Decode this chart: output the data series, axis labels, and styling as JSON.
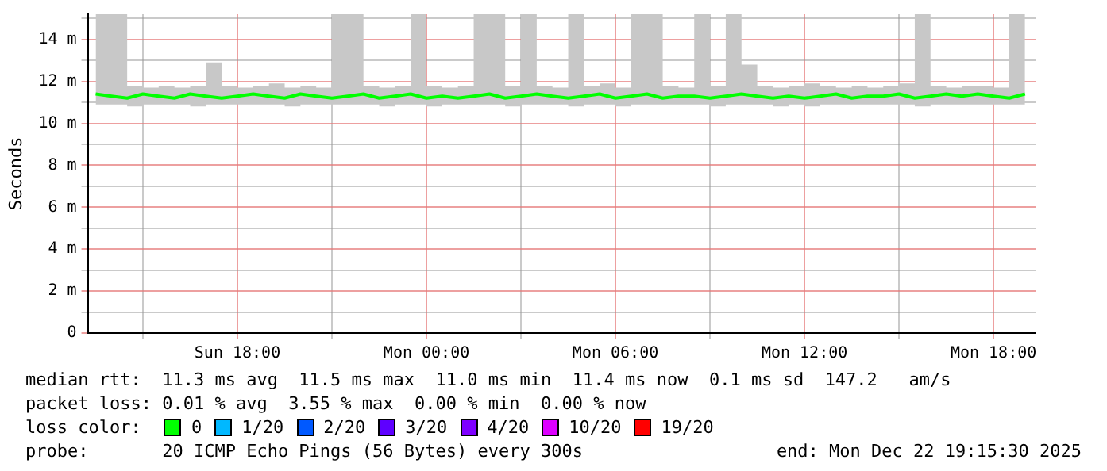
{
  "chart_data": {
    "type": "line",
    "ylabel": "Seconds",
    "legend_title": "loss color:",
    "legend": "bottom",
    "grid": true,
    "marker": "none",
    "line_style": "solid",
    "xlim": [
      "2025-12-21T13:15",
      "2025-12-22T19:20"
    ],
    "xticks": [
      {
        "value": "2025-12-21T15:00",
        "label": null
      },
      {
        "value": "2025-12-21T18:00",
        "label": "Sun 18:00"
      },
      {
        "value": "2025-12-21T21:00",
        "label": null
      },
      {
        "value": "2025-12-22T00:00",
        "label": "Mon 00:00"
      },
      {
        "value": "2025-12-22T03:00",
        "label": null
      },
      {
        "value": "2025-12-22T06:00",
        "label": "Mon 06:00"
      },
      {
        "value": "2025-12-22T09:00",
        "label": null
      },
      {
        "value": "2025-12-22T12:00",
        "label": "Mon 12:00"
      },
      {
        "value": "2025-12-22T15:00",
        "label": null
      },
      {
        "value": "2025-12-22T18:00",
        "label": "Mon 18:00"
      }
    ],
    "ylim": [
      0,
      15.2
    ],
    "yticks": [
      0,
      {
        "value": 1,
        "label": null
      },
      {
        "value": 2,
        "label": "2 m"
      },
      {
        "value": 3,
        "label": null
      },
      {
        "value": 4,
        "label": "4 m"
      },
      {
        "value": 5,
        "label": null
      },
      {
        "value": 6,
        "label": "6 m"
      },
      {
        "value": 7,
        "label": null
      },
      {
        "value": 8,
        "label": "8 m"
      },
      {
        "value": 9,
        "label": null
      },
      {
        "value": 10,
        "label": "10 m"
      },
      {
        "value": 11,
        "label": null
      },
      {
        "value": 12,
        "label": "12 m"
      },
      {
        "value": 13,
        "label": null
      },
      {
        "value": 14,
        "label": "14 m"
      },
      {
        "value": 15,
        "label": null
      }
    ],
    "x": [
      "2025-12-21T13:30",
      "2025-12-21T14:00",
      "2025-12-21T14:30",
      "2025-12-21T15:00",
      "2025-12-21T15:30",
      "2025-12-21T16:00",
      "2025-12-21T16:30",
      "2025-12-21T17:00",
      "2025-12-21T17:30",
      "2025-12-21T18:00",
      "2025-12-21T18:30",
      "2025-12-21T19:00",
      "2025-12-21T19:30",
      "2025-12-21T20:00",
      "2025-12-21T20:30",
      "2025-12-21T21:00",
      "2025-12-21T21:30",
      "2025-12-21T22:00",
      "2025-12-21T22:30",
      "2025-12-21T23:00",
      "2025-12-21T23:30",
      "2025-12-22T00:00",
      "2025-12-22T00:30",
      "2025-12-22T01:00",
      "2025-12-22T01:30",
      "2025-12-22T02:00",
      "2025-12-22T02:30",
      "2025-12-22T03:00",
      "2025-12-22T03:30",
      "2025-12-22T04:00",
      "2025-12-22T04:30",
      "2025-12-22T05:00",
      "2025-12-22T05:30",
      "2025-12-22T06:00",
      "2025-12-22T06:30",
      "2025-12-22T07:00",
      "2025-12-22T07:30",
      "2025-12-22T08:00",
      "2025-12-22T08:30",
      "2025-12-22T09:00",
      "2025-12-22T09:30",
      "2025-12-22T10:00",
      "2025-12-22T10:30",
      "2025-12-22T11:00",
      "2025-12-22T11:30",
      "2025-12-22T12:00",
      "2025-12-22T12:30",
      "2025-12-22T13:00",
      "2025-12-22T13:30",
      "2025-12-22T14:00",
      "2025-12-22T14:30",
      "2025-12-22T15:00",
      "2025-12-22T15:30",
      "2025-12-22T16:00",
      "2025-12-22T16:30",
      "2025-12-22T17:00",
      "2025-12-22T17:30",
      "2025-12-22T18:00",
      "2025-12-22T18:30",
      "2025-12-22T19:00"
    ],
    "series": [
      {
        "name": "0",
        "color": "#00ff00",
        "values": [
          11.4,
          11.3,
          11.2,
          11.4,
          11.3,
          11.2,
          11.4,
          11.3,
          11.2,
          11.3,
          11.4,
          11.3,
          11.2,
          11.4,
          11.3,
          11.2,
          11.3,
          11.4,
          11.2,
          11.3,
          11.4,
          11.2,
          11.3,
          11.2,
          11.3,
          11.4,
          11.2,
          11.3,
          11.4,
          11.3,
          11.2,
          11.3,
          11.4,
          11.2,
          11.3,
          11.4,
          11.2,
          11.3,
          11.3,
          11.2,
          11.3,
          11.4,
          11.3,
          11.2,
          11.3,
          11.2,
          11.3,
          11.4,
          11.2,
          11.3,
          11.3,
          11.4,
          11.2,
          11.3,
          11.4,
          11.3,
          11.4,
          11.3,
          11.2,
          11.4
        ],
        "lower": [
          10.9,
          10.9,
          10.8,
          10.9,
          10.9,
          10.9,
          10.8,
          10.9,
          10.9,
          10.9,
          10.9,
          10.9,
          10.8,
          10.9,
          10.9,
          10.9,
          10.9,
          10.9,
          10.8,
          10.9,
          10.9,
          10.8,
          10.9,
          10.9,
          10.9,
          10.9,
          10.8,
          10.9,
          10.9,
          10.9,
          10.8,
          10.9,
          10.9,
          10.8,
          10.9,
          10.9,
          10.9,
          10.9,
          10.9,
          10.8,
          10.9,
          10.9,
          10.9,
          10.8,
          10.9,
          10.8,
          10.9,
          10.9,
          10.9,
          10.9,
          10.9,
          10.9,
          10.8,
          10.9,
          10.9,
          10.9,
          10.9,
          10.9,
          10.9,
          10.9
        ],
        "upper": [
          15.2,
          15.2,
          11.8,
          11.7,
          11.8,
          11.7,
          11.8,
          12.9,
          11.8,
          11.7,
          11.8,
          11.9,
          11.7,
          11.8,
          11.7,
          15.2,
          15.2,
          11.8,
          11.7,
          11.8,
          15.2,
          11.8,
          11.7,
          11.8,
          15.2,
          15.2,
          11.8,
          15.2,
          11.8,
          11.7,
          15.2,
          11.8,
          11.9,
          11.7,
          15.2,
          15.2,
          11.8,
          11.7,
          15.2,
          11.8,
          15.2,
          12.8,
          11.8,
          11.7,
          11.8,
          11.9,
          11.8,
          11.7,
          11.8,
          11.7,
          11.8,
          11.9,
          15.2,
          11.8,
          11.7,
          11.8,
          11.8,
          11.7,
          15.2,
          11.9
        ]
      },
      {
        "name": "1/20",
        "color": "#00b8ff",
        "values": [
          null,
          null,
          null,
          null,
          null,
          null,
          null,
          null,
          null,
          null,
          null,
          null,
          null,
          null,
          null,
          null,
          null,
          null,
          null,
          null,
          null,
          null,
          null,
          null,
          null,
          null,
          null,
          null,
          null,
          null,
          null,
          null,
          null,
          null,
          null,
          null,
          null,
          null,
          null,
          null,
          null,
          null,
          null,
          null,
          null,
          null,
          null,
          null,
          null,
          null,
          null,
          null,
          null,
          null,
          null,
          null,
          null,
          null,
          null,
          null
        ]
      },
      {
        "name": "2/20",
        "color": "#0059ff",
        "values": [
          null,
          null,
          null,
          null,
          null,
          null,
          null,
          null,
          null,
          null,
          null,
          null,
          null,
          null,
          null,
          null,
          null,
          null,
          null,
          null,
          null,
          null,
          null,
          null,
          null,
          null,
          null,
          null,
          null,
          null,
          null,
          null,
          null,
          null,
          null,
          null,
          null,
          null,
          null,
          null,
          null,
          null,
          null,
          null,
          null,
          null,
          null,
          null,
          null,
          null,
          null,
          null,
          null,
          null,
          null,
          null,
          null,
          null,
          null,
          null
        ]
      },
      {
        "name": "3/20",
        "color": "#5e00ff",
        "values": [
          null,
          null,
          null,
          null,
          null,
          null,
          null,
          null,
          null,
          null,
          null,
          null,
          null,
          null,
          null,
          null,
          null,
          null,
          null,
          null,
          null,
          null,
          null,
          null,
          null,
          null,
          null,
          null,
          null,
          null,
          null,
          null,
          null,
          null,
          null,
          null,
          null,
          null,
          null,
          null,
          null,
          null,
          null,
          null,
          null,
          null,
          null,
          null,
          null,
          null,
          null,
          null,
          null,
          null,
          null,
          null,
          null,
          null,
          null,
          null
        ]
      },
      {
        "name": "4/20",
        "color": "#7e00ff",
        "values": [
          null,
          null,
          null,
          null,
          null,
          null,
          null,
          null,
          null,
          null,
          null,
          null,
          null,
          null,
          null,
          null,
          null,
          null,
          null,
          null,
          null,
          null,
          null,
          null,
          null,
          null,
          null,
          null,
          null,
          null,
          null,
          null,
          null,
          null,
          null,
          null,
          null,
          null,
          null,
          null,
          null,
          null,
          null,
          null,
          null,
          null,
          null,
          null,
          null,
          null,
          null,
          null,
          null,
          null,
          null,
          null,
          null,
          null,
          null,
          null
        ]
      },
      {
        "name": "10/20",
        "color": "#dd00ff",
        "values": [
          null,
          null,
          null,
          null,
          null,
          null,
          null,
          null,
          null,
          null,
          null,
          null,
          null,
          null,
          null,
          null,
          null,
          null,
          null,
          null,
          null,
          null,
          null,
          null,
          null,
          null,
          null,
          null,
          null,
          null,
          null,
          null,
          null,
          null,
          null,
          null,
          null,
          null,
          null,
          null,
          null,
          null,
          null,
          null,
          null,
          null,
          null,
          null,
          null,
          null,
          null,
          null,
          null,
          null,
          null,
          null,
          null,
          null,
          null,
          null
        ]
      },
      {
        "name": "19/20",
        "color": "#ff0000",
        "values": [
          null,
          null,
          null,
          null,
          null,
          null,
          null,
          null,
          null,
          null,
          null,
          null,
          null,
          null,
          null,
          null,
          null,
          null,
          null,
          null,
          null,
          null,
          null,
          null,
          null,
          null,
          null,
          null,
          null,
          null,
          null,
          null,
          null,
          null,
          null,
          null,
          null,
          null,
          null,
          null,
          null,
          null,
          null,
          null,
          null,
          null,
          null,
          null,
          null,
          null,
          null,
          null,
          null,
          null,
          null,
          null,
          null,
          null,
          null,
          null
        ]
      }
    ],
    "annotations": [
      "median rtt:  11.3 ms avg  11.5 ms max  11.0 ms min  11.4 ms now  0.1 ms sd  147.2   am/s",
      "packet loss: 0.01 % avg  3.55 % max  0.00 % min  0.00 % now",
      "probe:       20 ICMP Echo Pings (56 Bytes) every 300s",
      "end: Mon Dec 22 19:15:30 2025"
    ]
  }
}
